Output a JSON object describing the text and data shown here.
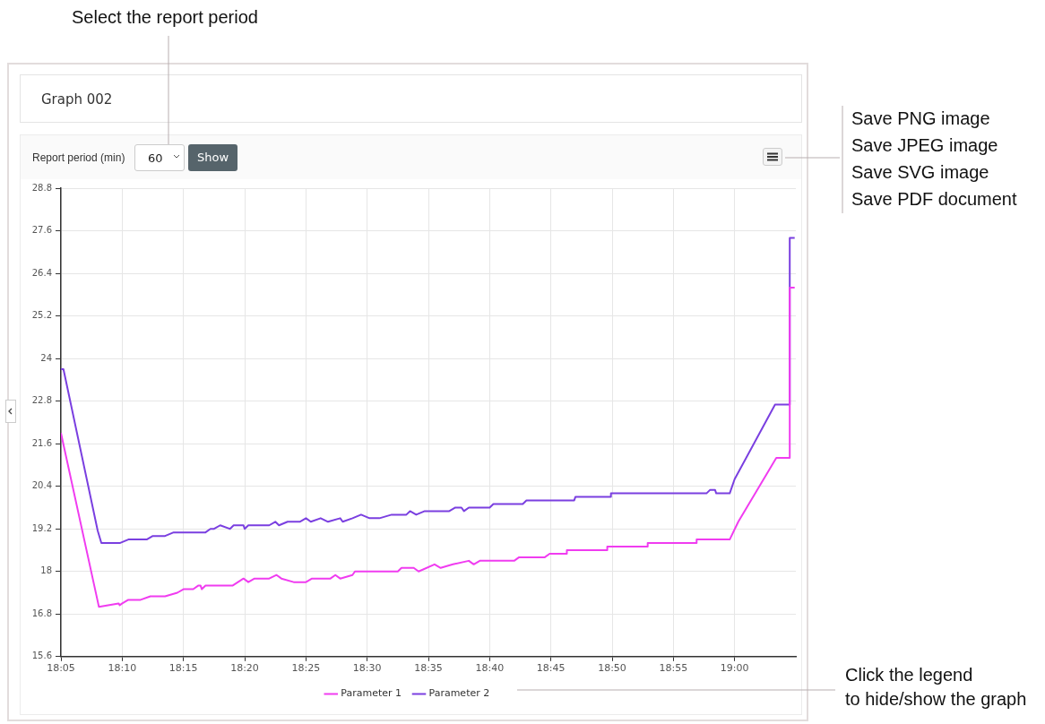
{
  "chart_data": {
    "type": "line",
    "title": "Graph 002",
    "annotations": [
      "Select the report period",
      "Report period (min)",
      "60",
      "Show",
      "Save PNG image",
      "Save JPEG image",
      "Save SVG image",
      "Save PDF document",
      "Click the legend\nto hide/show the graph"
    ],
    "xlim": [
      18.0833,
      19.0833
    ],
    "xticks": [
      {
        "value": 18.0833,
        "label": "18:05"
      },
      {
        "value": 18.1667,
        "label": "18:10"
      },
      {
        "value": 18.25,
        "label": "18:15"
      },
      {
        "value": 18.3333,
        "label": "18:20"
      },
      {
        "value": 18.4167,
        "label": "18:25"
      },
      {
        "value": 18.5,
        "label": "18:30"
      },
      {
        "value": 18.5833,
        "label": "18:35"
      },
      {
        "value": 18.6667,
        "label": "18:40"
      },
      {
        "value": 18.75,
        "label": "18:45"
      },
      {
        "value": 18.8333,
        "label": "18:50"
      },
      {
        "value": 18.9167,
        "label": "18:55"
      },
      {
        "value": 19,
        "label": "19:00"
      }
    ],
    "ylim": [
      15.6,
      28.8
    ],
    "yticks": [
      15.6,
      16.8,
      18,
      19.2,
      20.4,
      21.6,
      22.8,
      24,
      25.2,
      26.4,
      27.6,
      28.8
    ],
    "grid": true,
    "legend": "bottom",
    "marker": "none",
    "line_style": "solid",
    "series": [
      {
        "name": "Parameter 1",
        "color": "#f03cf0",
        "x": [
          18.0833,
          18.135,
          18.1617,
          18.1633,
          18.1667,
          18.175,
          18.1917,
          18.205,
          18.225,
          18.2417,
          18.25,
          18.2633,
          18.27,
          18.2733,
          18.275,
          18.28,
          18.3167,
          18.3317,
          18.3383,
          18.3467,
          18.3667,
          18.3767,
          18.3833,
          18.4,
          18.4167,
          18.425,
          18.45,
          18.4567,
          18.4633,
          18.48,
          18.4833,
          18.5417,
          18.5467,
          18.5633,
          18.57,
          18.5917,
          18.6,
          18.6167,
          18.6383,
          18.645,
          18.6533,
          18.7,
          18.7067,
          18.7417,
          18.7483,
          18.7717,
          18.7717,
          18.8267,
          18.8267,
          18.8817,
          18.8817,
          18.9483,
          18.9483,
          18.9933,
          19.005,
          19.0567,
          19.075,
          19.075,
          19.0817
        ],
        "values": [
          21.9,
          17.0,
          17.1,
          17.05,
          17.1,
          17.2,
          17.2,
          17.3,
          17.3,
          17.4,
          17.5,
          17.5,
          17.6,
          17.6,
          17.5,
          17.6,
          17.6,
          17.8,
          17.7,
          17.8,
          17.8,
          17.9,
          17.8,
          17.7,
          17.7,
          17.8,
          17.8,
          17.9,
          17.8,
          17.9,
          18.0,
          18.0,
          18.1,
          18.1,
          18.0,
          18.2,
          18.1,
          18.2,
          18.3,
          18.2,
          18.3,
          18.3,
          18.4,
          18.4,
          18.5,
          18.5,
          18.6,
          18.6,
          18.7,
          18.7,
          18.8,
          18.8,
          18.9,
          18.9,
          19.4,
          21.2,
          21.2,
          26.0,
          26.0
        ]
      },
      {
        "name": "Parameter 2",
        "color": "#7a3fe0",
        "x": [
          18.0833,
          18.0867,
          18.1333,
          18.1383,
          18.1633,
          18.175,
          18.2,
          18.2083,
          18.225,
          18.2367,
          18.28,
          18.2867,
          18.2917,
          18.3,
          18.3133,
          18.3183,
          18.3317,
          18.3333,
          18.3383,
          18.3667,
          18.375,
          18.38,
          18.3917,
          18.4083,
          18.4167,
          18.4233,
          18.4367,
          18.4467,
          18.4633,
          18.4667,
          18.48,
          18.4917,
          18.5033,
          18.5167,
          18.5333,
          18.5533,
          18.5583,
          18.5667,
          18.5783,
          18.6117,
          18.62,
          18.6283,
          18.6317,
          18.6383,
          18.6667,
          18.6717,
          18.7117,
          18.7167,
          18.7817,
          18.7833,
          18.8233,
          18.8317,
          18.8317,
          18.9417,
          18.9617,
          18.9667,
          18.9733,
          18.975,
          18.9933,
          19,
          19.055,
          19.075,
          19.075,
          19.0817
        ],
        "values": [
          23.7,
          23.7,
          19.15,
          18.8,
          18.8,
          18.9,
          18.9,
          19.0,
          19.0,
          19.1,
          19.1,
          19.2,
          19.2,
          19.3,
          19.2,
          19.3,
          19.3,
          19.2,
          19.3,
          19.3,
          19.4,
          19.3,
          19.4,
          19.4,
          19.5,
          19.4,
          19.5,
          19.4,
          19.5,
          19.4,
          19.5,
          19.6,
          19.5,
          19.5,
          19.6,
          19.6,
          19.7,
          19.6,
          19.7,
          19.7,
          19.8,
          19.8,
          19.7,
          19.8,
          19.8,
          19.9,
          19.9,
          20.0,
          20.0,
          20.1,
          20.1,
          20.1,
          20.2,
          20.2,
          20.2,
          20.3,
          20.3,
          20.2,
          20.2,
          20.6,
          22.7,
          22.7,
          27.4,
          27.4
        ]
      }
    ]
  }
}
